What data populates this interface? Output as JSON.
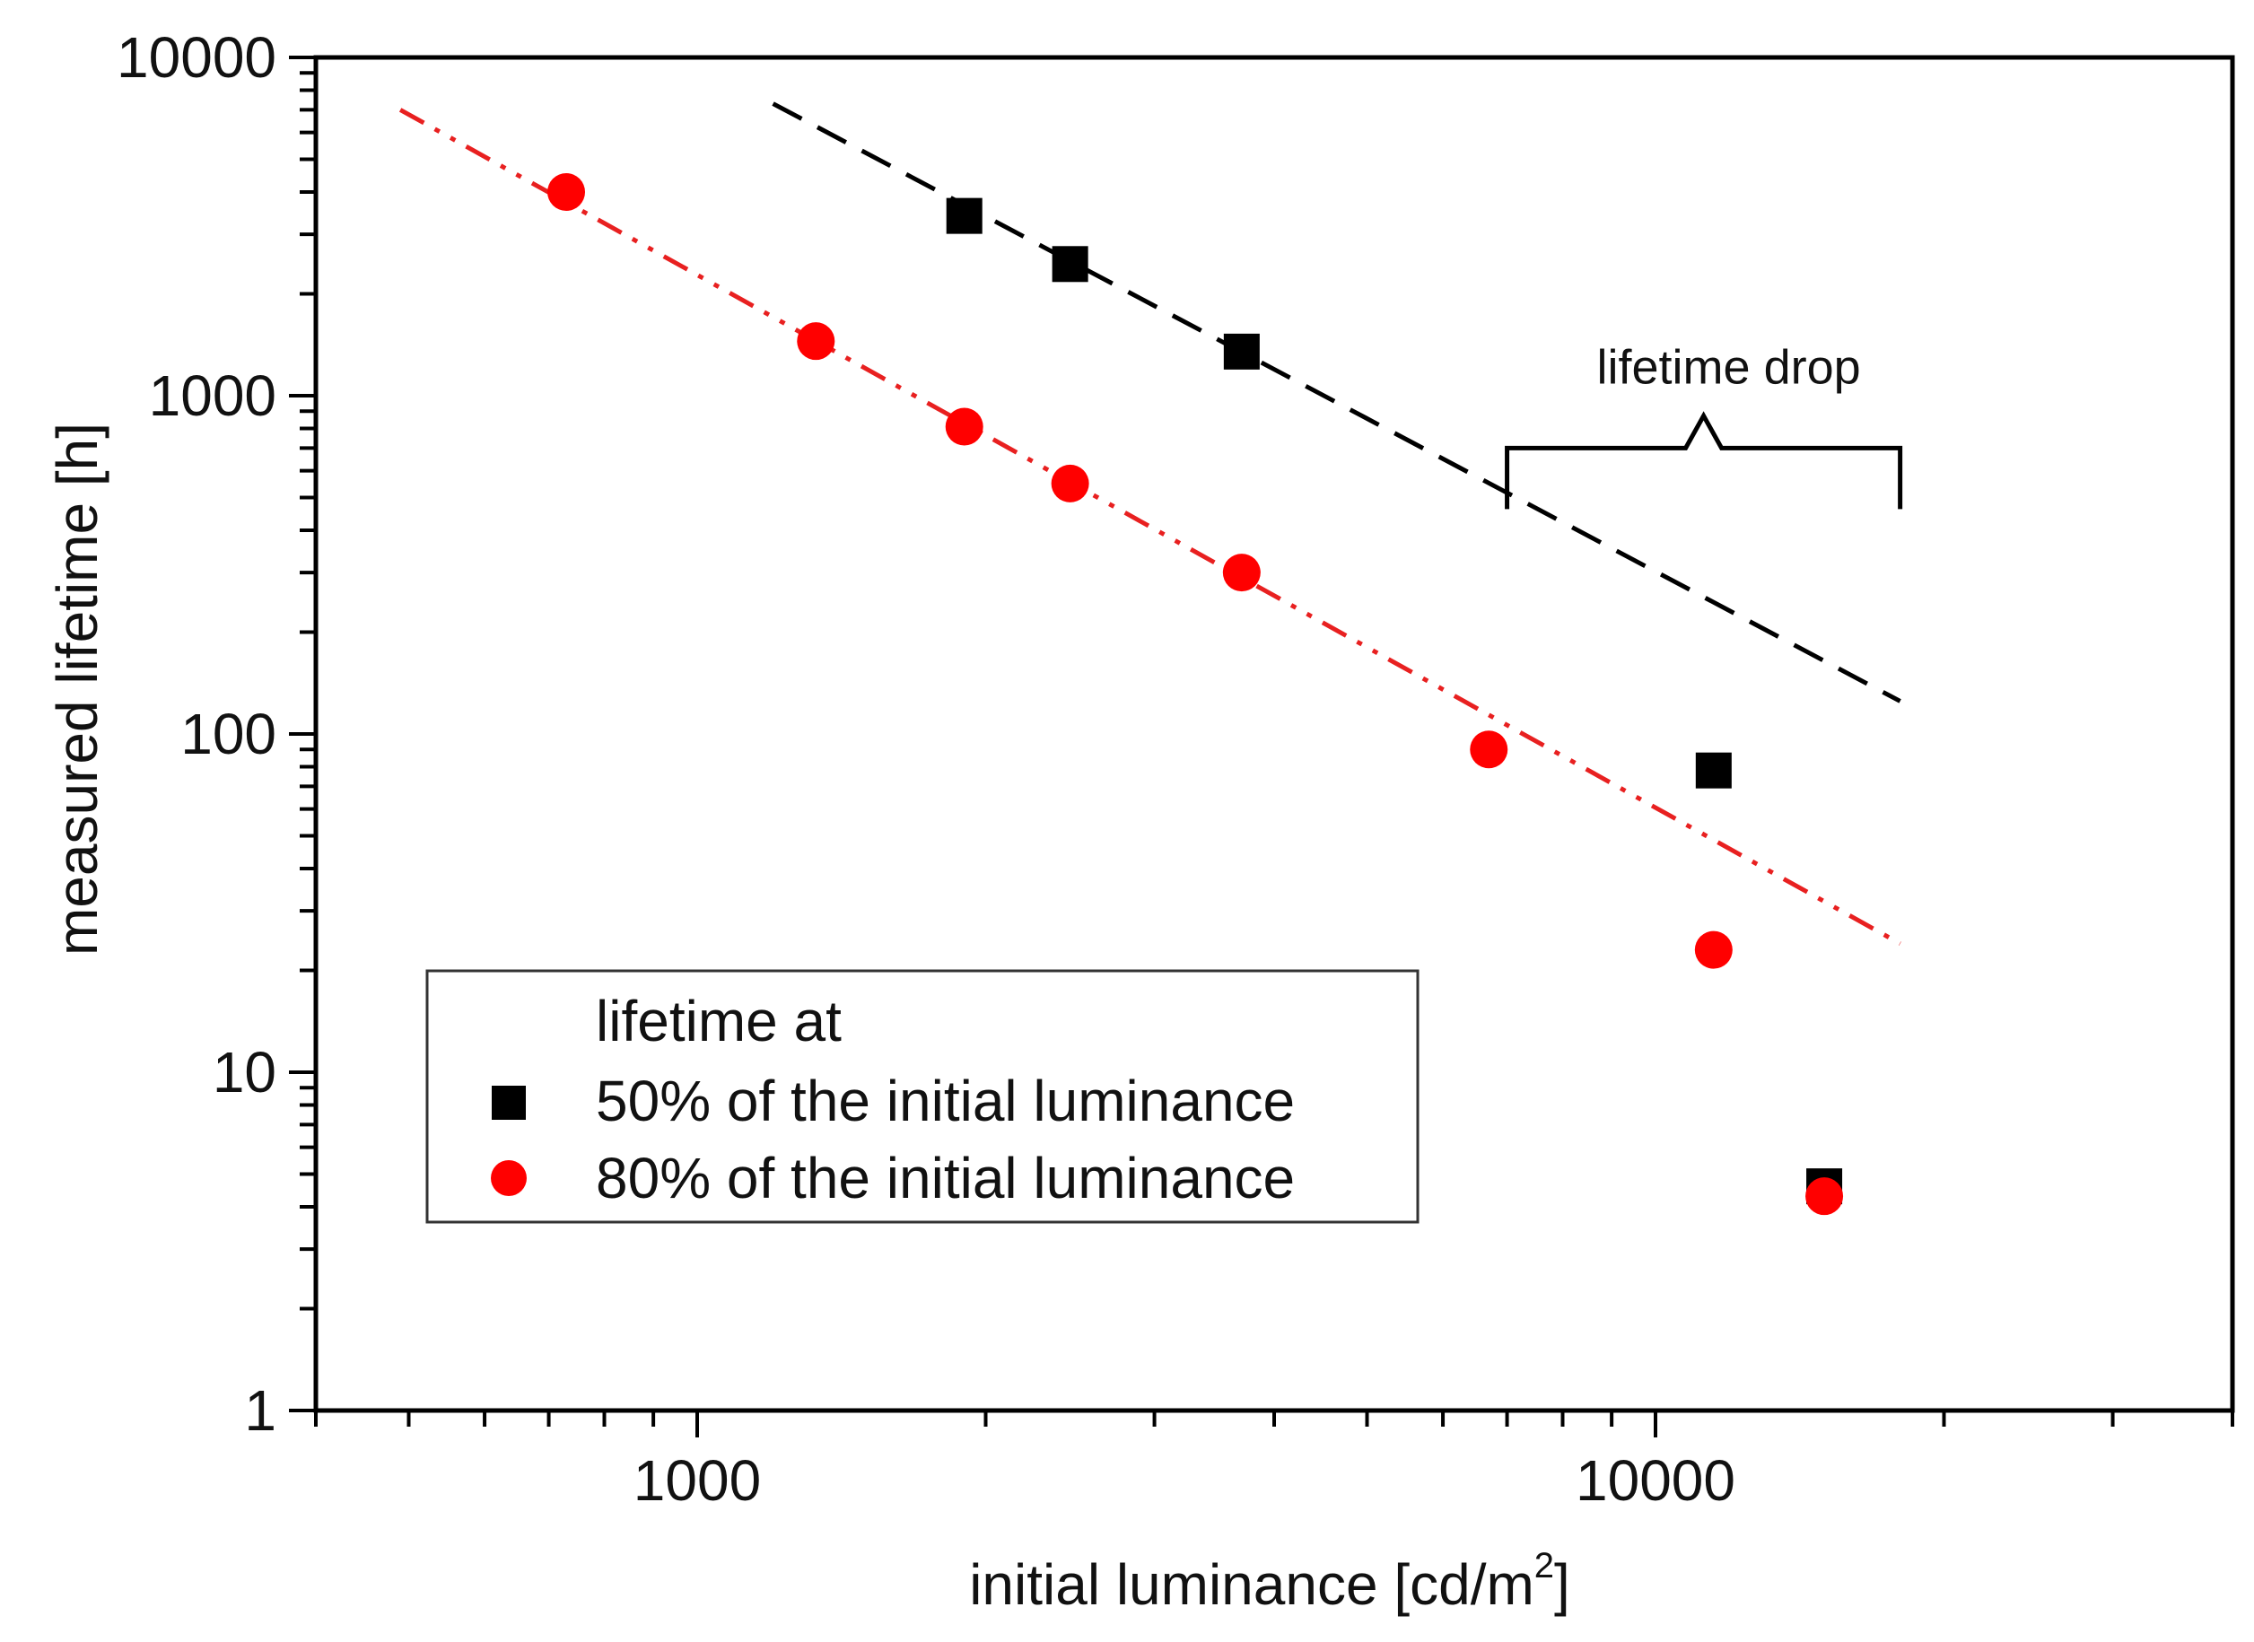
{
  "chart_data": {
    "type": "scatter",
    "title": "",
    "xlabel": "initial luminance [cd/m",
    "xlabel_superscript": "2",
    "xlabel_suffix": "]",
    "ylabel": "measured lifetime [h]",
    "xscale": "log",
    "yscale": "log",
    "xlim": [
      400,
      40000
    ],
    "ylim": [
      1,
      10000
    ],
    "x_ticks": [
      {
        "value": 1000,
        "label": "1000"
      },
      {
        "value": 10000,
        "label": "10000"
      }
    ],
    "y_ticks": [
      {
        "value": 1,
        "label": "1"
      },
      {
        "value": 10,
        "label": "10"
      },
      {
        "value": 100,
        "label": "100"
      },
      {
        "value": 1000,
        "label": "1000"
      },
      {
        "value": 10000,
        "label": "10000"
      }
    ],
    "series": [
      {
        "name": "50% of the initial luminance",
        "marker": "square",
        "color": "#000000",
        "points": [
          {
            "x": 1900,
            "y": 3400
          },
          {
            "x": 2450,
            "y": 2450
          },
          {
            "x": 3700,
            "y": 1350
          },
          {
            "x": 11500,
            "y": 78
          },
          {
            "x": 15000,
            "y": 4.6
          }
        ],
        "fit": {
          "style": "dashed",
          "color": "#000000",
          "x1": 1200,
          "y1": 7300,
          "x2": 18000,
          "y2": 125
        }
      },
      {
        "name": "80% of the initial luminance",
        "marker": "circle",
        "color": "#ff0000",
        "points": [
          {
            "x": 730,
            "y": 4000
          },
          {
            "x": 1330,
            "y": 1450
          },
          {
            "x": 1900,
            "y": 810
          },
          {
            "x": 2450,
            "y": 550
          },
          {
            "x": 3700,
            "y": 300
          },
          {
            "x": 6700,
            "y": 90
          },
          {
            "x": 11500,
            "y": 23
          },
          {
            "x": 15000,
            "y": 4.3
          }
        ],
        "fit": {
          "style": "dash-dot",
          "color": "#e82020",
          "x1": 490,
          "y1": 7000,
          "x2": 18000,
          "y2": 24
        }
      }
    ],
    "legend": {
      "title": "lifetime at",
      "position": "bottom-left",
      "entries": [
        "50% of the initial luminance",
        "80% of the initial luminance"
      ]
    },
    "annotations": [
      {
        "text": "lifetime drop",
        "type": "brace",
        "x_from": 7000,
        "x_to": 18000,
        "y": 700
      }
    ],
    "grid": false
  },
  "colors": {
    "axis": "#000000",
    "series_50": "#000000",
    "series_80": "#ff0000",
    "fit_50": "#000000",
    "fit_80": "#e82020"
  }
}
